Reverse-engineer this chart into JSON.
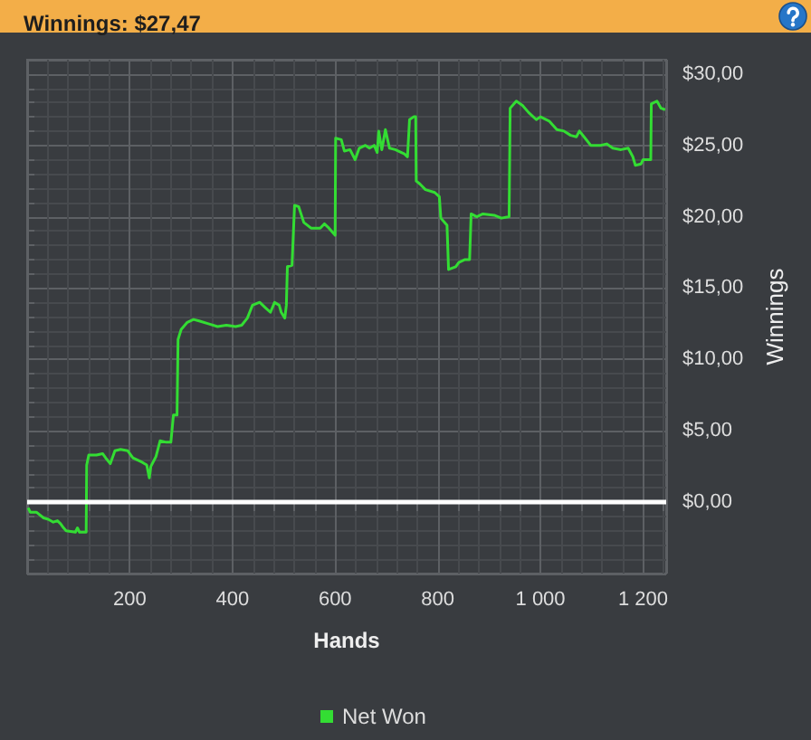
{
  "chart_data": {
    "type": "line",
    "title": "Winnings: $27,47",
    "xlabel": "Hands",
    "ylabel": "Winnings",
    "x": [
      2,
      6,
      18,
      32,
      41,
      51,
      59,
      65,
      71,
      76,
      94,
      98,
      102,
      115,
      116,
      120,
      135,
      147,
      153,
      162,
      171,
      182,
      196,
      206,
      224,
      233,
      238,
      241,
      251,
      259,
      271,
      280,
      285,
      292,
      294,
      300,
      312,
      324,
      335,
      353,
      371,
      388,
      406,
      418,
      429,
      439,
      453,
      465,
      474,
      482,
      491,
      495,
      502,
      505,
      507,
      516,
      521,
      529,
      539,
      553,
      571,
      579,
      588,
      600,
      601,
      612,
      618,
      629,
      639,
      647,
      659,
      667,
      676,
      682,
      685,
      691,
      698,
      706,
      717,
      735,
      741,
      745,
      753,
      757,
      758,
      765,
      776,
      794,
      803,
      806,
      818,
      821,
      835,
      841,
      853,
      862,
      865,
      876,
      888,
      910,
      924,
      939,
      941,
      953,
      965,
      977,
      992,
      1000,
      1017,
      1032,
      1046,
      1059,
      1070,
      1076,
      1087,
      1098,
      1117,
      1129,
      1141,
      1157,
      1171,
      1180,
      1185,
      1196,
      1200,
      1215,
      1216,
      1227,
      1235,
      1243
    ],
    "series": [
      {
        "name": "Net Won",
        "color": "#33dd33",
        "values": [
          -0.4,
          -0.7,
          -0.7,
          -1.1,
          -1.2,
          -1.4,
          -1.3,
          -1.5,
          -1.8,
          -2.0,
          -2.1,
          -1.8,
          -2.1,
          -2.1,
          2.6,
          3.3,
          3.3,
          3.4,
          3.1,
          2.7,
          3.6,
          3.7,
          3.6,
          3.1,
          2.8,
          2.6,
          1.7,
          2.5,
          3.2,
          4.3,
          4.2,
          4.2,
          6.1,
          6.1,
          11.4,
          12.1,
          12.6,
          12.8,
          12.7,
          12.5,
          12.3,
          12.4,
          12.3,
          12.4,
          12.9,
          13.8,
          14.0,
          13.6,
          13.3,
          14.0,
          13.8,
          13.3,
          12.9,
          13.8,
          16.5,
          16.6,
          20.8,
          20.7,
          19.6,
          19.2,
          19.2,
          19.5,
          19.2,
          18.7,
          25.5,
          25.4,
          24.6,
          24.7,
          24.0,
          24.8,
          25.0,
          24.8,
          25.0,
          24.5,
          26.0,
          24.7,
          26.1,
          24.8,
          24.7,
          24.4,
          24.2,
          26.8,
          27.0,
          27.0,
          22.5,
          22.3,
          21.9,
          21.7,
          21.4,
          19.9,
          19.4,
          16.3,
          16.5,
          16.8,
          17.0,
          17.0,
          20.2,
          20.0,
          20.2,
          20.1,
          19.9,
          20.0,
          27.6,
          28.1,
          27.8,
          27.3,
          26.8,
          27.0,
          26.7,
          26.1,
          26.0,
          25.7,
          25.6,
          26.0,
          25.5,
          25.0,
          25.0,
          25.1,
          24.8,
          24.7,
          24.8,
          24.2,
          23.6,
          23.7,
          24.0,
          24.0,
          27.9,
          28.1,
          27.6,
          27.5
        ]
      }
    ],
    "xlim": [
      0,
      1245
    ],
    "ylim": [
      -5,
      31
    ],
    "xticks": [
      200,
      400,
      600,
      800,
      {
        "value": 1000,
        "label": "1 000"
      },
      {
        "value": 1200,
        "label": "1 200"
      }
    ],
    "yticks": [
      {
        "value": 0,
        "label": "$0,00"
      },
      {
        "value": 5,
        "label": "$5,00"
      },
      {
        "value": 10,
        "label": "$10,00"
      },
      {
        "value": 15,
        "label": "$15,00"
      },
      {
        "value": 20,
        "label": "$20,00"
      },
      {
        "value": 25,
        "label": "$25,00"
      },
      {
        "value": 30,
        "label": "$30,00"
      }
    ],
    "ref_lines": [
      {
        "axis": "y",
        "value": 0,
        "color": "#ffffff"
      }
    ],
    "grid": true,
    "legend": "bottom",
    "marker": "none",
    "line_style": "solid"
  }
}
